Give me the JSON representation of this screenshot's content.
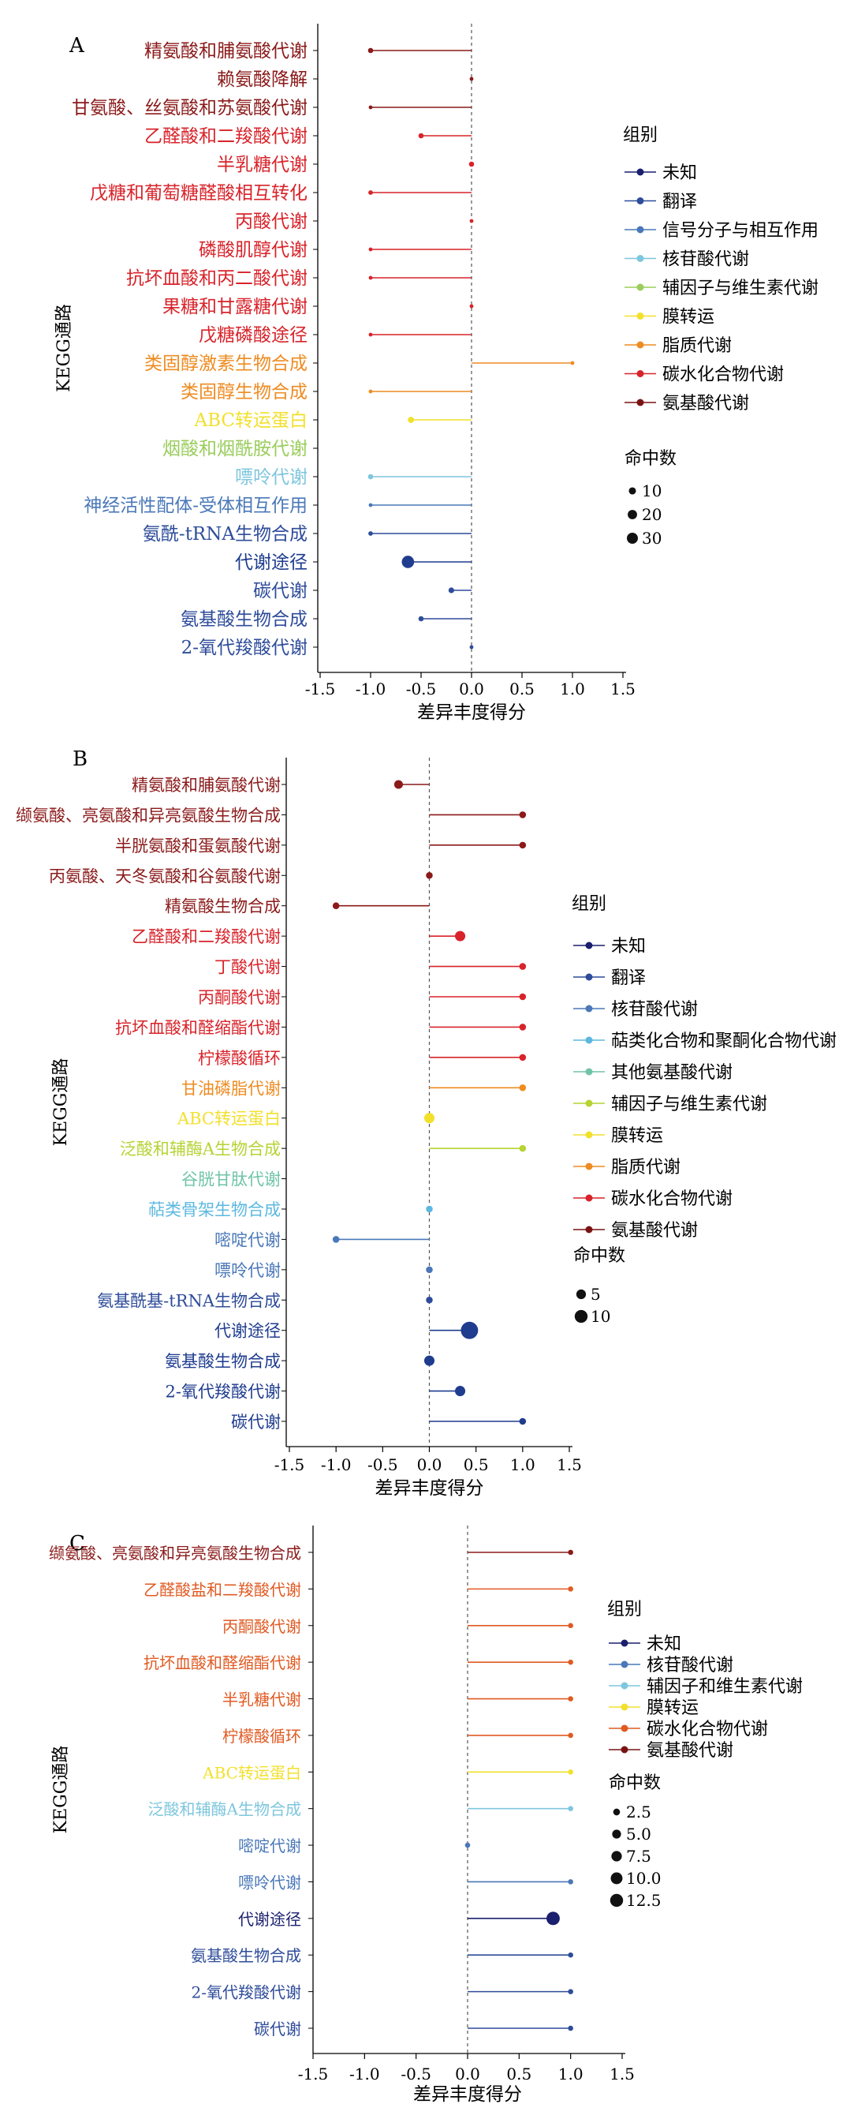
{
  "chart_data": [
    {
      "type": "scatter",
      "panel_label": "A",
      "xlabel": "差异丰度得分",
      "ylabel": "KEGG通路",
      "xlim": [
        -1.5,
        1.5
      ],
      "xticks": [
        "-1.5",
        "-1.0",
        "-0.5",
        "0.0",
        "0.5",
        "1.0",
        "1.5"
      ],
      "grid": false,
      "legend_position": "right",
      "group_title": "组别",
      "size_title": "命中数",
      "size_legend": [
        {
          "label": "10",
          "hits": 10
        },
        {
          "label": "20",
          "hits": 20
        },
        {
          "label": "30",
          "hits": 30
        }
      ],
      "groups": [
        {
          "name": "未知",
          "color": "#1a1f6e"
        },
        {
          "name": "翻译",
          "color": "#2e4c9a"
        },
        {
          "name": "信号分子与相互作用",
          "color": "#4a78b8"
        },
        {
          "name": "核苷酸代谢",
          "color": "#7ec6dd"
        },
        {
          "name": "辅因子与维生素代谢",
          "color": "#9acd5c"
        },
        {
          "name": "膜转运",
          "color": "#f2e02c"
        },
        {
          "name": "脂质代谢",
          "color": "#ee8c22"
        },
        {
          "name": "碳水化合物代谢",
          "color": "#d8232a"
        },
        {
          "name": "氨基酸代谢",
          "color": "#7a1414"
        }
      ],
      "pathways": [
        {
          "name": "精氨酸和脯氨酸代谢",
          "score": -1.0,
          "hits": 3,
          "color": "#8b1a1a"
        },
        {
          "name": "赖氨酸降解",
          "score": 0.0,
          "hits": 1,
          "color": "#8b1a1a"
        },
        {
          "name": "甘氨酸、丝氨酸和苏氨酸代谢",
          "score": -1.0,
          "hits": 1,
          "color": "#8b1a1a"
        },
        {
          "name": "乙醛酸和二羧酸代谢",
          "score": -0.5,
          "hits": 3,
          "color": "#d8232a"
        },
        {
          "name": "半乳糖代谢",
          "score": 0.0,
          "hits": 3,
          "color": "#d8232a"
        },
        {
          "name": "戊糖和葡萄糖醛酸相互转化",
          "score": -1.0,
          "hits": 2,
          "color": "#d8232a"
        },
        {
          "name": "丙酸代谢",
          "score": 0.0,
          "hits": 1,
          "color": "#d8232a"
        },
        {
          "name": "磷酸肌醇代谢",
          "score": -1.0,
          "hits": 1,
          "color": "#d8232a"
        },
        {
          "name": "抗坏血酸和丙二酸代谢",
          "score": -1.0,
          "hits": 1,
          "color": "#d8232a"
        },
        {
          "name": "果糖和甘露糖代谢",
          "score": 0.0,
          "hits": 1,
          "color": "#d8232a"
        },
        {
          "name": "戊糖磷酸途径",
          "score": -1.0,
          "hits": 1,
          "color": "#d8232a"
        },
        {
          "name": "类固醇激素生物合成",
          "score": 1.0,
          "hits": 1,
          "color": "#ee8c22"
        },
        {
          "name": "类固醇生物合成",
          "score": -1.0,
          "hits": 1,
          "color": "#ee8c22"
        },
        {
          "name": "ABC转运蛋白",
          "score": -0.6,
          "hits": 5,
          "color": "#f2e02c"
        },
        {
          "name": "烟酸和烟酰胺代谢",
          "score": 0.0,
          "hits": 0,
          "color": "#9acd5c"
        },
        {
          "name": "嘌呤代谢",
          "score": -1.0,
          "hits": 3,
          "color": "#7ec6dd"
        },
        {
          "name": "神经活性配体-受体相互作用",
          "score": -1.0,
          "hits": 1,
          "color": "#4a78b8"
        },
        {
          "name": "氨酰-tRNA生物合成",
          "score": -1.0,
          "hits": 2,
          "color": "#2e4c9a"
        },
        {
          "name": "代谢途径",
          "score": -0.63,
          "hits": 30,
          "color": "#1f3c8f"
        },
        {
          "name": "碳代谢",
          "score": -0.2,
          "hits": 4,
          "color": "#2e4c9a"
        },
        {
          "name": "氨基酸生物合成",
          "score": -0.5,
          "hits": 3,
          "color": "#2e4c9a"
        },
        {
          "name": "2-氧代羧酸代谢",
          "score": 0.0,
          "hits": 1,
          "color": "#2e4c9a"
        }
      ]
    },
    {
      "type": "scatter",
      "panel_label": "B",
      "xlabel": "差异丰度得分",
      "ylabel": "KEGG通路",
      "xlim": [
        -1.5,
        1.5
      ],
      "xticks": [
        "-1.5",
        "-1.0",
        "-0.5",
        "0.0",
        "0.5",
        "1.0",
        "1.5"
      ],
      "grid": false,
      "legend_position": "right",
      "group_title": "组别",
      "size_title": "命中数",
      "size_legend": [
        {
          "label": "5",
          "hits": 5
        },
        {
          "label": "10",
          "hits": 10
        }
      ],
      "groups": [
        {
          "name": "未知",
          "color": "#1a1f6e"
        },
        {
          "name": "翻译",
          "color": "#2e4c9a"
        },
        {
          "name": "核苷酸代谢",
          "color": "#4a78b8"
        },
        {
          "name": "萜类化合物和聚酮化合物代谢",
          "color": "#5cb8e0"
        },
        {
          "name": "其他氨基酸代谢",
          "color": "#6fc4a8"
        },
        {
          "name": "辅因子与维生素代谢",
          "color": "#b5d334"
        },
        {
          "name": "膜转运",
          "color": "#f2e02c"
        },
        {
          "name": "脂质代谢",
          "color": "#ee8c22"
        },
        {
          "name": "碳水化合物代谢",
          "color": "#d8232a"
        },
        {
          "name": "氨基酸代谢",
          "color": "#7a1414"
        }
      ],
      "pathways": [
        {
          "name": "精氨酸和脯氨酸代谢",
          "score": -0.33,
          "hits": 2,
          "color": "#8b1a1a"
        },
        {
          "name": "缬氨酸、亮氨酸和异亮氨酸生物合成",
          "score": 1.0,
          "hits": 1,
          "color": "#8b1a1a"
        },
        {
          "name": "半胱氨酸和蛋氨酸代谢",
          "score": 1.0,
          "hits": 1,
          "color": "#8b1a1a"
        },
        {
          "name": "丙氨酸、天冬氨酸和谷氨酸代谢",
          "score": 0.0,
          "hits": 1,
          "color": "#8b1a1a"
        },
        {
          "name": "精氨酸生物合成",
          "score": -1.0,
          "hits": 1,
          "color": "#8b1a1a"
        },
        {
          "name": "乙醛酸和二羧酸代谢",
          "score": 0.33,
          "hits": 3,
          "color": "#d8232a"
        },
        {
          "name": "丁酸代谢",
          "score": 1.0,
          "hits": 1,
          "color": "#d8232a"
        },
        {
          "name": "丙酮酸代谢",
          "score": 1.0,
          "hits": 1,
          "color": "#d8232a"
        },
        {
          "name": "抗坏血酸和醛缩酯代谢",
          "score": 1.0,
          "hits": 1,
          "color": "#d8232a"
        },
        {
          "name": "柠檬酸循环",
          "score": 1.0,
          "hits": 1,
          "color": "#d8232a"
        },
        {
          "name": "甘油磷脂代谢",
          "score": 1.0,
          "hits": 1,
          "color": "#ee8c22"
        },
        {
          "name": "ABC转运蛋白",
          "score": 0.0,
          "hits": 3,
          "color": "#f2e02c"
        },
        {
          "name": "泛酸和辅酶A生物合成",
          "score": 1.0,
          "hits": 1,
          "color": "#b5d334"
        },
        {
          "name": "谷胱甘肽代谢",
          "score": 0.0,
          "hits": 0,
          "color": "#6fc4a8"
        },
        {
          "name": "萜类骨架生物合成",
          "score": 0.0,
          "hits": 1,
          "color": "#5cb8e0"
        },
        {
          "name": "嘧啶代谢",
          "score": -1.0,
          "hits": 1,
          "color": "#4a78b8"
        },
        {
          "name": "嘌呤代谢",
          "score": 0.0,
          "hits": 1,
          "color": "#4a78b8"
        },
        {
          "name": "氨基酰基-tRNA生物合成",
          "score": 0.0,
          "hits": 1,
          "color": "#2e4c9a"
        },
        {
          "name": "代谢途径",
          "score": 0.43,
          "hits": 10,
          "color": "#1f3c8f"
        },
        {
          "name": "氨基酸生物合成",
          "score": 0.0,
          "hits": 3,
          "color": "#1f3c8f"
        },
        {
          "name": "2-氧代羧酸代谢",
          "score": 0.33,
          "hits": 3,
          "color": "#1f3c8f"
        },
        {
          "name": "碳代谢",
          "score": 1.0,
          "hits": 1,
          "color": "#1f3c8f"
        }
      ]
    },
    {
      "type": "scatter",
      "panel_label": "C",
      "xlabel": "差异丰度得分",
      "ylabel": "KEGG通路",
      "xlim": [
        -1.5,
        1.5
      ],
      "xticks": [
        "-1.5",
        "-1.0",
        "-0.5",
        "0.0",
        "0.5",
        "1.0",
        "1.5"
      ],
      "grid": false,
      "legend_position": "right",
      "group_title": "组别",
      "size_title": "命中数",
      "size_legend": [
        {
          "label": "2.5",
          "hits": 2.5
        },
        {
          "label": "5.0",
          "hits": 5
        },
        {
          "label": "7.5",
          "hits": 7.5
        },
        {
          "label": "10.0",
          "hits": 10
        },
        {
          "label": "12.5",
          "hits": 12.5
        }
      ],
      "groups": [
        {
          "name": "未知",
          "color": "#1a1f6e"
        },
        {
          "name": "核苷酸代谢",
          "color": "#4a78b8"
        },
        {
          "name": "辅因子和维生素代谢",
          "color": "#7ec6dd"
        },
        {
          "name": "膜转运",
          "color": "#f2e02c"
        },
        {
          "name": "碳水化合物代谢",
          "color": "#e05a22"
        },
        {
          "name": "氨基酸代谢",
          "color": "#7a1414"
        }
      ],
      "pathways": [
        {
          "name": "缬氨酸、亮氨酸和异亮氨酸生物合成",
          "score": 1.0,
          "hits": 1,
          "color": "#8b1a1a"
        },
        {
          "name": "乙醛酸盐和二羧酸代谢",
          "score": 1.0,
          "hits": 1,
          "color": "#e05a22"
        },
        {
          "name": "丙酮酸代谢",
          "score": 1.0,
          "hits": 1,
          "color": "#e05a22"
        },
        {
          "name": "抗坏血酸和醛缩酯代谢",
          "score": 1.0,
          "hits": 1,
          "color": "#e05a22"
        },
        {
          "name": "半乳糖代谢",
          "score": 1.0,
          "hits": 1,
          "color": "#e05a22"
        },
        {
          "name": "柠檬酸循环",
          "score": 1.0,
          "hits": 1,
          "color": "#e05a22"
        },
        {
          "name": "ABC转运蛋白",
          "score": 1.0,
          "hits": 1,
          "color": "#f2e02c"
        },
        {
          "name": "泛酸和辅酶A生物合成",
          "score": 1.0,
          "hits": 1,
          "color": "#7ec6dd"
        },
        {
          "name": "嘧啶代谢",
          "score": 0.0,
          "hits": 1,
          "color": "#4a78b8"
        },
        {
          "name": "嘌呤代谢",
          "score": 1.0,
          "hits": 1,
          "color": "#4a78b8"
        },
        {
          "name": "代谢途径",
          "score": 0.83,
          "hits": 12,
          "color": "#1a1f6e"
        },
        {
          "name": "氨基酸生物合成",
          "score": 1.0,
          "hits": 1,
          "color": "#2e4c9a"
        },
        {
          "name": "2-氧代羧酸代谢",
          "score": 1.0,
          "hits": 1,
          "color": "#2e4c9a"
        },
        {
          "name": "碳代谢",
          "score": 1.0,
          "hits": 1,
          "color": "#2e4c9a"
        }
      ]
    }
  ]
}
